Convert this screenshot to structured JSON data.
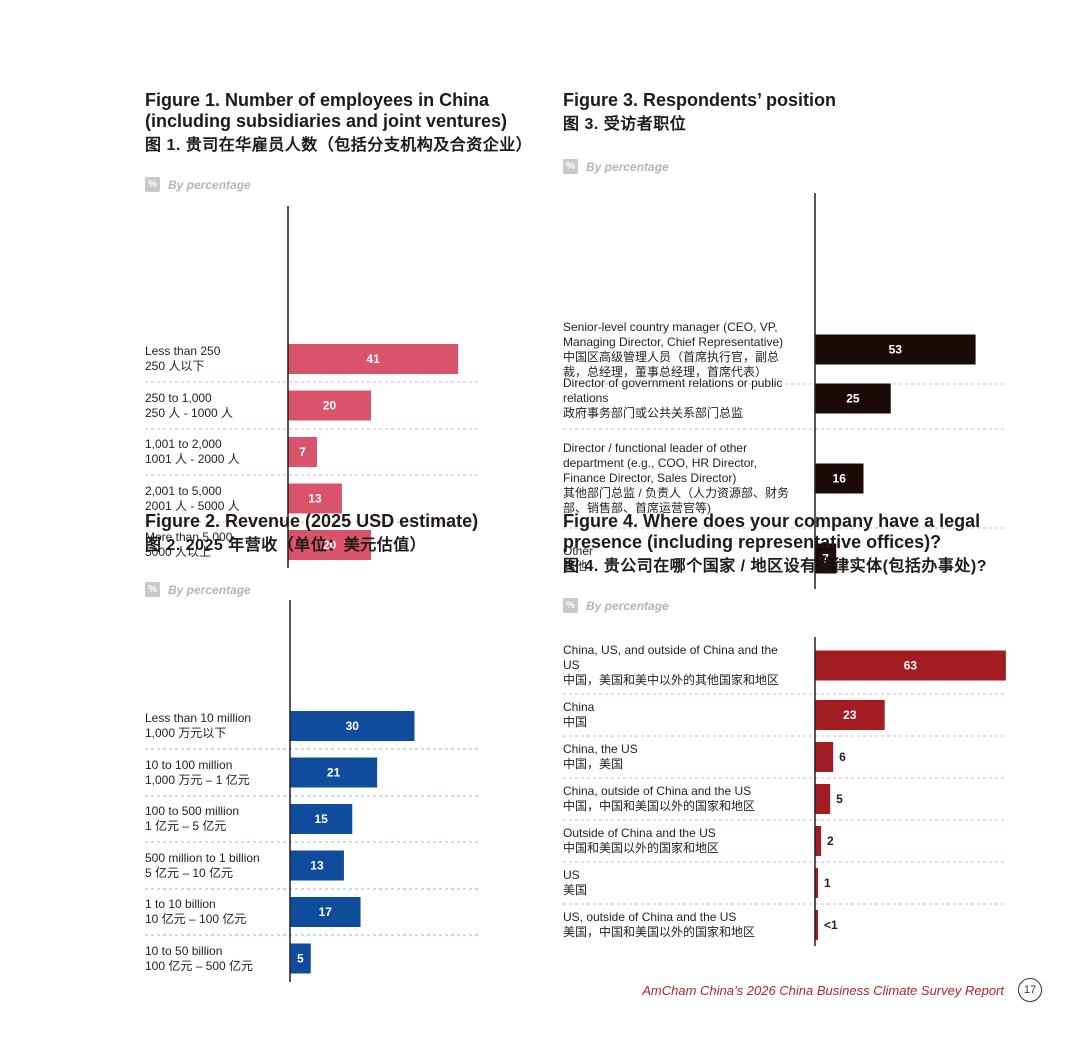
{
  "figures": [
    {
      "id": "fig1",
      "title": "Figure 1. Number of employees in China (including subsidiaries and joint ventures)",
      "title_cn": "图 1. 贵司在华雇员人数（包括分支机构及合资企业）",
      "subtitle": "By percentage"
    },
    {
      "id": "fig2",
      "title": "Figure 2. Revenue (2025 USD estimate)",
      "title_cn": "图 2. 2025 年营收（单位：美元估值）",
      "subtitle": "By percentage"
    },
    {
      "id": "fig3",
      "title": "Figure 3. Respondents’ position",
      "title_cn": "图 3. 受访者职位",
      "subtitle": "By percentage"
    },
    {
      "id": "fig4",
      "title": "Figure 4. Where does your company have a legal presence (including representative offices)?",
      "title_cn": "图 4. 贵公司在哪个国家 / 地区设有法律实体(包括办事处)?",
      "subtitle": "By percentage"
    }
  ],
  "pct_icon": "%",
  "chart_data": [
    {
      "type": "bar",
      "orientation": "horizontal",
      "title": "Figure 1. Number of employees in China (including subsidiaries and joint ventures)",
      "color": "#d9546b",
      "categories": [
        {
          "en": "Less than 250",
          "cn": "250 人以下"
        },
        {
          "en": "250 to 1,000",
          "cn": "250 人 - 1000 人"
        },
        {
          "en": "1,001 to 2,000",
          "cn": "1001 人 - 2000 人"
        },
        {
          "en": "2,001 to 5,000",
          "cn": "2001 人 - 5000 人"
        },
        {
          "en": "More than 5,000",
          "cn": "5000 人以上"
        }
      ],
      "values": [
        41,
        20,
        7,
        13,
        20
      ],
      "labels": [
        "41",
        "20",
        "7",
        "13",
        "20"
      ],
      "xlim": [
        0,
        100
      ]
    },
    {
      "type": "bar",
      "orientation": "horizontal",
      "title": "Figure 2. Revenue (2025 USD estimate)",
      "color": "#0f4c9c",
      "categories": [
        {
          "en": "Less than 10 million",
          "cn": "1,000 万元以下"
        },
        {
          "en": "10 to 100 million",
          "cn": "1,000 万元 – 1 亿元"
        },
        {
          "en": "100 to 500 million",
          "cn": "1 亿元 – 5 亿元"
        },
        {
          "en": "500 million to 1 billion",
          "cn": "5 亿元 – 10 亿元"
        },
        {
          "en": "1 to 10 billion",
          "cn": "10 亿元 – 100 亿元"
        },
        {
          "en": "10 to 50 billion",
          "cn": "100 亿元 – 500 亿元"
        }
      ],
      "values": [
        30,
        21,
        15,
        13,
        17,
        5
      ],
      "labels": [
        "30",
        "21",
        "15",
        "13",
        "17",
        "5"
      ],
      "xlim": [
        0,
        100
      ]
    },
    {
      "type": "bar",
      "orientation": "horizontal",
      "title": "Figure 3. Respondents’ position",
      "color": "#1a0a08",
      "categories": [
        {
          "en": "Senior-level country manager (CEO, VP, Managing Director, Chief Representative)",
          "cn": "中国区高级管理人员（首席执行官，副总裁，总经理，董事总经理，首席代表）"
        },
        {
          "en": "Director of government relations or public relations",
          "cn": "政府事务部门或公共关系部门总监"
        },
        {
          "en": "Director / functional leader of other department (e.g., COO, HR Director, Finance Director, Sales Director)",
          "cn": "其他部门总监 / 负责人（人力资源部、财务部、销售部、首席运营官等)"
        },
        {
          "en": "Other",
          "cn": "其他"
        }
      ],
      "values": [
        53,
        25,
        16,
        7
      ],
      "labels": [
        "53",
        "25",
        "16",
        "7"
      ],
      "xlim": [
        0,
        100
      ]
    },
    {
      "type": "bar",
      "orientation": "horizontal",
      "title": "Figure 4. Where does your company have a legal presence (including representative offices)?",
      "color": "#a31c24",
      "categories": [
        {
          "en": "China, US, and outside of China and the US",
          "cn": "中国，美国和美中以外的其他国家和地区"
        },
        {
          "en": "China",
          "cn": "中国"
        },
        {
          "en": "China, the US",
          "cn": "中国，美国"
        },
        {
          "en": "China, outside of China and the US",
          "cn": "中国，中国和美国以外的国家和地区"
        },
        {
          "en": "Outside of China and the US",
          "cn": "中国和美国以外的国家和地区"
        },
        {
          "en": "US",
          "cn": "美国"
        },
        {
          "en": "US, outside of China and the US",
          "cn": "美国，中国和美国以外的国家和地区"
        }
      ],
      "values": [
        63,
        23,
        6,
        5,
        2,
        1,
        0.5
      ],
      "labels": [
        "63",
        "23",
        "6",
        "5",
        "2",
        "1",
        "<1"
      ],
      "xlim": [
        0,
        100
      ]
    }
  ],
  "footer": {
    "report_title": "AmCham China’s 2026 China Business Climate Survey Report",
    "page_number": "17"
  }
}
